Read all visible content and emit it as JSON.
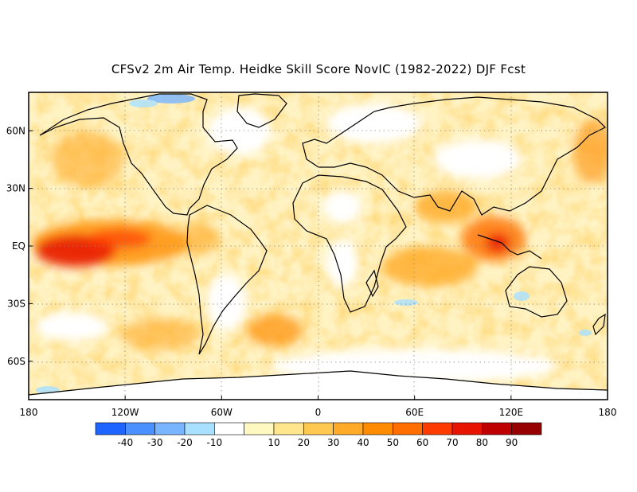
{
  "title": "CFSv2 2m Air Temp. Heidke Skill Score NovIC (1982-2022) DJF Fcst",
  "map": {
    "lat_labels": [
      "60N",
      "30N",
      "EQ",
      "30S",
      "60S"
    ],
    "lat_values": [
      60,
      30,
      0,
      -30,
      -60
    ],
    "lon_labels": [
      "180",
      "120W",
      "60W",
      "0",
      "60E",
      "120E",
      "180"
    ],
    "lon_values": [
      -180,
      -120,
      -60,
      0,
      60,
      120,
      180
    ],
    "lat_range": [
      -80,
      80
    ],
    "lon_range": [
      -180,
      180
    ],
    "grid": "dotted"
  },
  "colorbar": {
    "colors": [
      "#1e64ff",
      "#4a90ff",
      "#78b4ff",
      "#a8e0ff",
      "#ffffff",
      "#fff8c0",
      "#ffe68c",
      "#ffc850",
      "#ffaa28",
      "#ff8c00",
      "#ff6e00",
      "#ff3c00",
      "#e61400",
      "#be0000",
      "#960000"
    ],
    "tick_labels": [
      "-40",
      "-30",
      "-20",
      "-10",
      "10",
      "20",
      "30",
      "40",
      "50",
      "60",
      "70",
      "80",
      "90"
    ]
  }
}
